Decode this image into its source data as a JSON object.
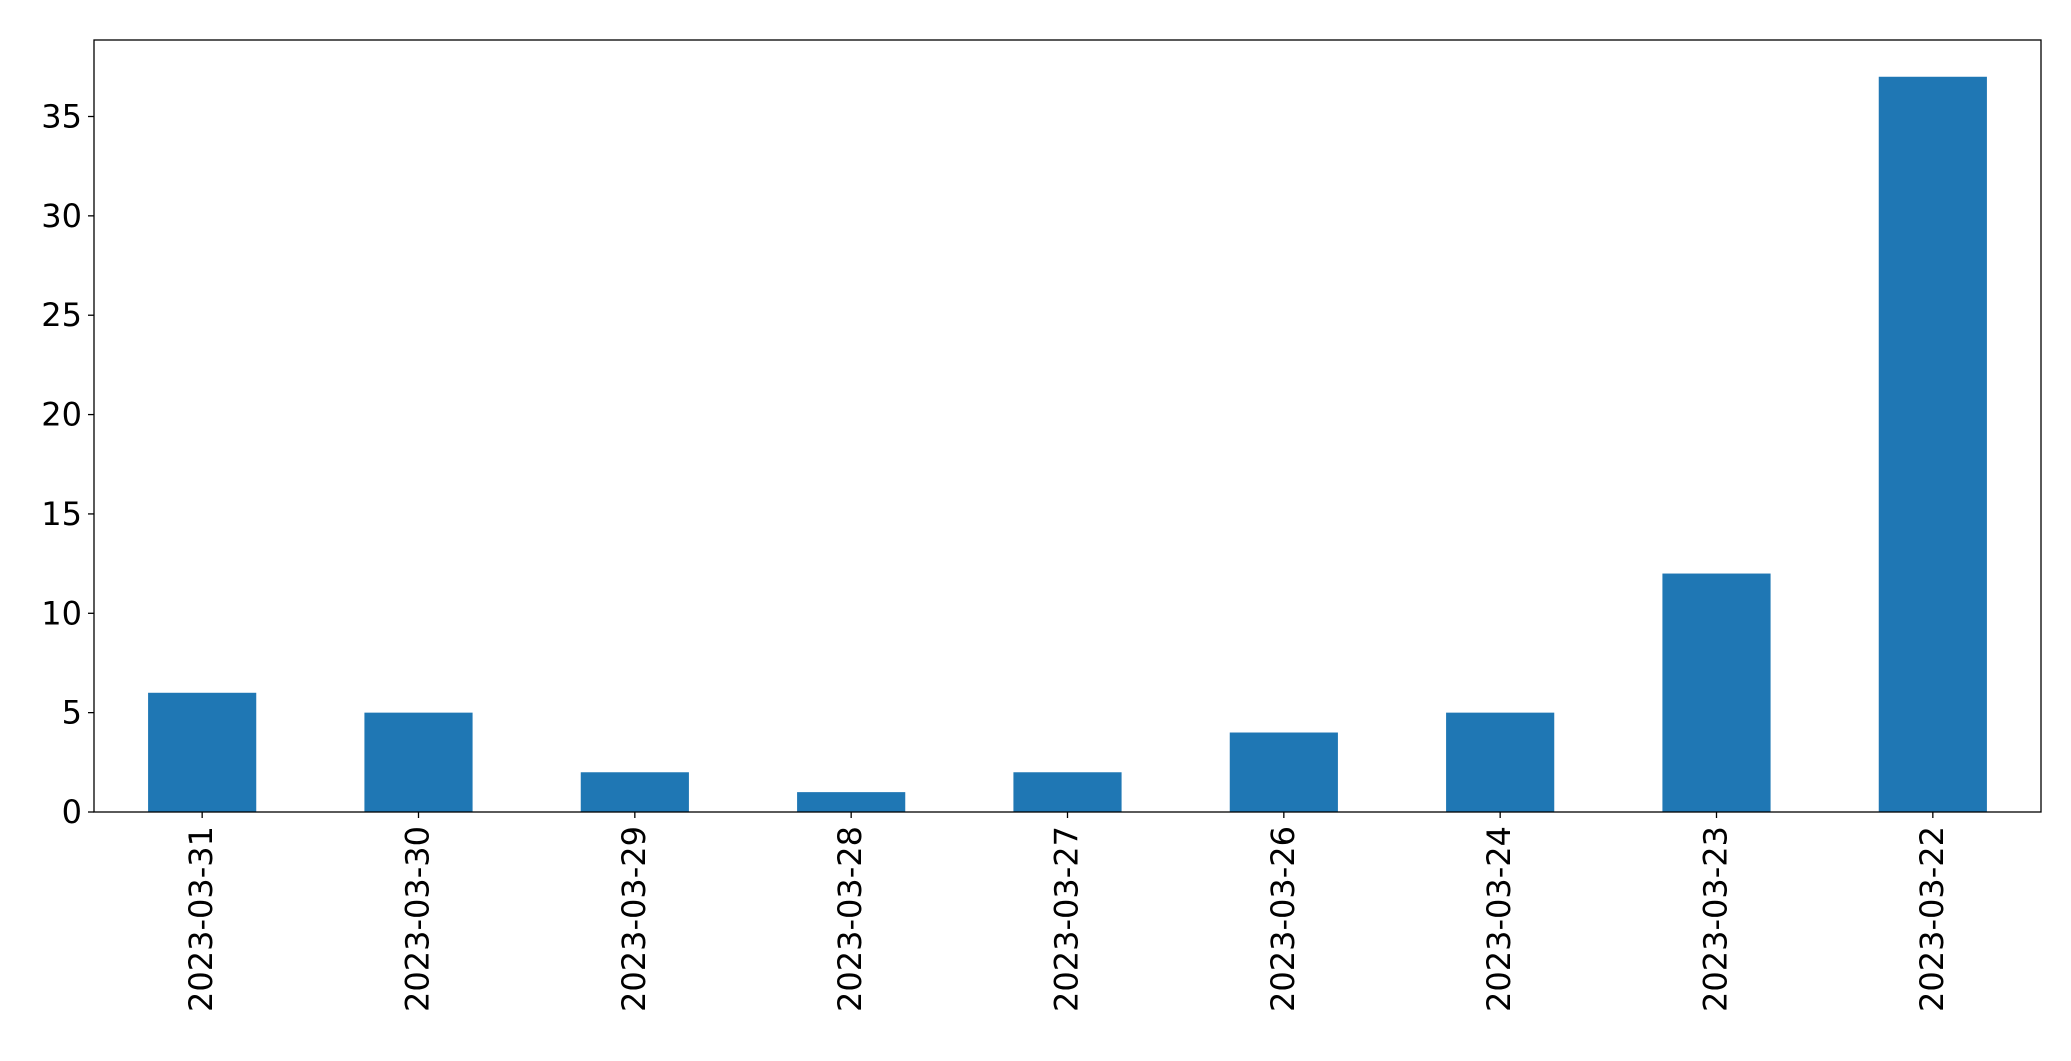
{
  "chart_data": {
    "type": "bar",
    "title": "",
    "xlabel": "",
    "ylabel": "",
    "categories": [
      "2023-03-31",
      "2023-03-30",
      "2023-03-29",
      "2023-03-28",
      "2023-03-27",
      "2023-03-26",
      "2023-03-24",
      "2023-03-23",
      "2023-03-22"
    ],
    "values": [
      6,
      5,
      2,
      1,
      2,
      4,
      5,
      12,
      37
    ],
    "ylim": [
      0,
      38.85
    ],
    "yticks": [
      0,
      5,
      10,
      15,
      20,
      25,
      30,
      35
    ],
    "grid": false,
    "legend": "none",
    "bar_color": "#1f77b4"
  }
}
